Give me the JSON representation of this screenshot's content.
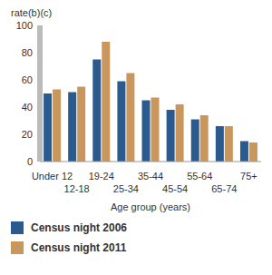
{
  "chart_data": {
    "type": "bar",
    "y_label": "rate(b)(c)",
    "x_label": "Age group (years)",
    "categories": [
      "Under 12",
      "12-18",
      "19-24",
      "25-34",
      "35-44",
      "45-54",
      "55-64",
      "65-74",
      "75+"
    ],
    "series": [
      {
        "name": "Census night 2006",
        "color": "#2b5a8f",
        "values": [
          50,
          51,
          75,
          59,
          45,
          38,
          31,
          26,
          15
        ]
      },
      {
        "name": "Census night 2011",
        "color": "#c9975e",
        "values": [
          53,
          55,
          88,
          65,
          47,
          42,
          34,
          26,
          14
        ]
      }
    ],
    "ylim": [
      0,
      100
    ],
    "yticks": [
      0,
      20,
      40,
      60,
      80,
      100
    ],
    "grid": false,
    "legend": "bottom"
  }
}
